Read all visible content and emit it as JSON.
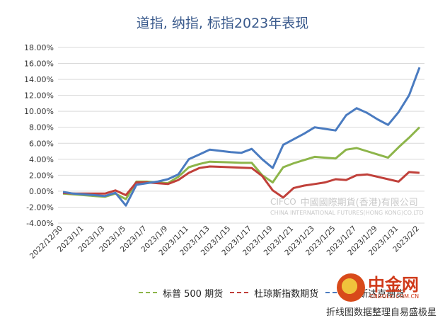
{
  "header": {
    "title": "道指, 纳指, 标指2023年表现"
  },
  "chart_data": {
    "type": "line",
    "title": "道指, 纳指, 标指2023年表现",
    "ylim": [
      -4,
      18
    ],
    "yticks": [
      -4,
      -2,
      0,
      2,
      4,
      6,
      8,
      10,
      12,
      14,
      16,
      18
    ],
    "ytick_labels": [
      "-4.00%",
      "-2.00%",
      "0.00%",
      "2.00%",
      "4.00%",
      "6.00%",
      "8.00%",
      "10.00%",
      "12.00%",
      "14.00%",
      "16.00%",
      "18.00%"
    ],
    "x": [
      "2022/12/30",
      "2022/12/31",
      "2023/1/1",
      "2023/1/2",
      "2023/1/3",
      "2023/1/4",
      "2023/1/5",
      "2023/1/6",
      "2023/1/7",
      "2023/1/8",
      "2023/1/9",
      "2023/1/10",
      "2023/1/11",
      "2023/1/12",
      "2023/1/13",
      "2023/1/14",
      "2023/1/15",
      "2023/1/16",
      "2023/1/17",
      "2023/1/18",
      "2023/1/19",
      "2023/1/20",
      "2023/1/21",
      "2023/1/22",
      "2023/1/23",
      "2023/1/24",
      "2023/1/25",
      "2023/1/26",
      "2023/1/27",
      "2023/1/28",
      "2023/1/29",
      "2023/1/30",
      "2023/1/31",
      "2023/2/1",
      "2023/2/2"
    ],
    "xtick_labels": [
      "2022/12/30",
      "2023/1/1",
      "2023/1/3",
      "2023/1/5",
      "2023/1/7",
      "2023/1/9",
      "2023/1/11",
      "2023/1/13",
      "2023/1/15",
      "2023/1/17",
      "2023/1/19",
      "2023/1/21",
      "2023/1/23",
      "2023/1/25",
      "2023/1/27",
      "2023/1/29",
      "2023/1/31",
      "2023/2/2"
    ],
    "grid": true,
    "legend_position": "bottom",
    "series": [
      {
        "name": "标普 500 期货",
        "color": "#8db54a",
        "values": [
          -0.3,
          -0.4,
          -0.5,
          -0.6,
          -0.7,
          -0.3,
          -1.0,
          1.2,
          1.2,
          1.1,
          1.0,
          1.8,
          3.0,
          3.4,
          3.7,
          3.65,
          3.6,
          3.55,
          3.55,
          2.0,
          1.1,
          3.0,
          3.5,
          3.9,
          4.3,
          4.2,
          4.1,
          5.2,
          5.4,
          5.0,
          4.6,
          4.2,
          5.5,
          6.7,
          8.0
        ]
      },
      {
        "name": "杜琼斯指数期货",
        "color": "#c0403a",
        "values": [
          -0.2,
          -0.3,
          -0.3,
          -0.3,
          -0.3,
          0.1,
          -0.5,
          1.1,
          1.1,
          1.0,
          0.9,
          1.4,
          2.3,
          2.9,
          3.1,
          3.05,
          3.0,
          2.95,
          2.9,
          1.9,
          0.1,
          -0.8,
          0.4,
          0.7,
          0.9,
          1.1,
          1.5,
          1.4,
          2.0,
          2.1,
          1.8,
          1.5,
          1.2,
          2.4,
          2.3
        ]
      },
      {
        "name": "纳斯达克期货",
        "color": "#4a7bc0",
        "values": [
          -0.1,
          -0.3,
          -0.4,
          -0.5,
          -0.6,
          -0.2,
          -1.8,
          0.8,
          1.0,
          1.2,
          1.5,
          2.1,
          4.0,
          4.6,
          5.2,
          5.05,
          4.9,
          4.8,
          5.3,
          4.0,
          2.9,
          5.8,
          6.5,
          7.2,
          8.0,
          7.8,
          7.6,
          9.5,
          10.4,
          9.8,
          9.0,
          8.3,
          9.9,
          12.0,
          15.5
        ]
      }
    ]
  },
  "footer": {
    "note": "折线图数据整理自易盛极星"
  },
  "watermark": {
    "name_cn": "中國國際期貨(香港)有限公司",
    "name_en": "CHINA INTERNATIONAL FUTURES(HONG KONG)CO.LTD",
    "mark": "CIFCO"
  },
  "logo": {
    "brand": "中金网",
    "url": "CNGOLD.COM.CN"
  }
}
